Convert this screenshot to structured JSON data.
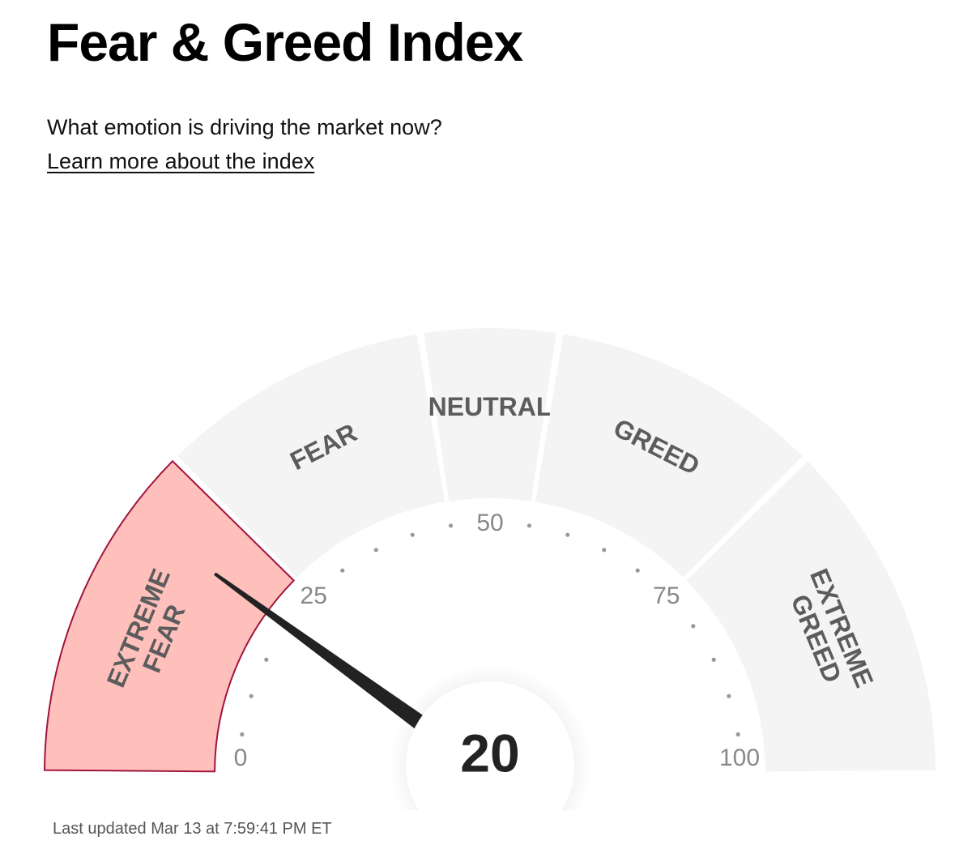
{
  "chart_data": {
    "type": "gauge",
    "title": "Fear & Greed Index",
    "subtitle": "What emotion is driving the market now?",
    "link": "Learn more about the index",
    "value": 20,
    "range": [
      0,
      100
    ],
    "ticks": [
      0,
      25,
      50,
      75,
      100
    ],
    "minor_ticks": [
      5,
      10,
      15,
      20,
      30,
      35,
      40,
      45,
      55,
      60,
      65,
      70,
      80,
      85,
      90,
      95
    ],
    "segments": [
      {
        "label": [
          "EXTREME",
          "FEAR"
        ],
        "from": 0,
        "to": 25
      },
      {
        "label": [
          "FEAR"
        ],
        "from": 25,
        "to": 45
      },
      {
        "label": [
          "NEUTRAL"
        ],
        "from": 45,
        "to": 55
      },
      {
        "label": [
          "GREED"
        ],
        "from": 55,
        "to": 75
      },
      {
        "label": [
          "EXTREME",
          "GREED"
        ],
        "from": 75,
        "to": 100
      }
    ],
    "active_color": "#ffc0bc",
    "active_stroke": "#a0143c",
    "segment_color": "#f4f4f4",
    "footer": "Last updated Mar 13 at 7:59:41 PM ET"
  }
}
